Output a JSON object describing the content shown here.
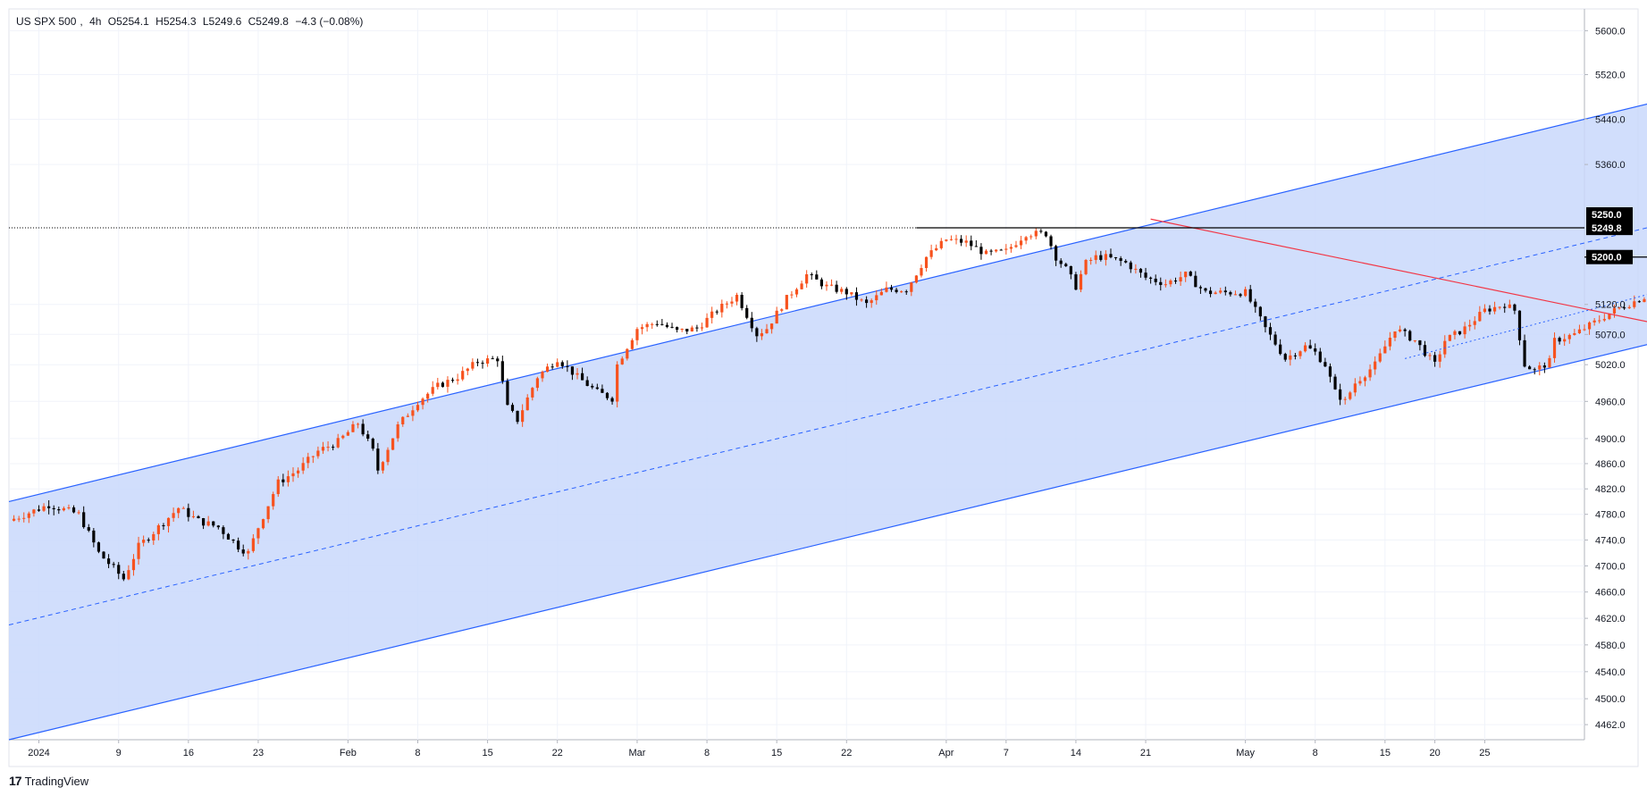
{
  "header": {
    "symbol": "US SPX 500",
    "interval": "4h",
    "open": "O5254.1",
    "high": "H5254.3",
    "low": "L5249.6",
    "close": "C5249.8",
    "change": "−4.3 (−0.08%)"
  },
  "branding": {
    "name": "TradingView",
    "logo_glyph": "17"
  },
  "colors": {
    "up": "#f7521e",
    "down": "#000000",
    "channel_line": "#2962ff",
    "channel_fill": "#c9d8fb",
    "resistance": "#f23645",
    "level": "#000000"
  },
  "price_tags": [
    {
      "label": "5250.0",
      "value": 5250.0
    },
    {
      "label": "5249.8",
      "value": 5249.8
    },
    {
      "label": "5200.0",
      "value": 5200.0
    }
  ],
  "chart_data": {
    "type": "candlestick",
    "title": "",
    "x_tick_labels": [
      "2024",
      "9",
      "16",
      "23",
      "Feb",
      "8",
      "15",
      "22",
      "Mar",
      "8",
      "15",
      "22",
      "Apr",
      "7",
      "14",
      "21",
      "May",
      "8",
      "15",
      "20",
      "25"
    ],
    "x_tick_days": [
      0,
      8,
      15,
      22,
      31,
      38,
      45,
      52,
      60,
      67,
      74,
      81,
      91,
      97,
      104,
      111,
      121,
      128,
      135,
      140,
      145
    ],
    "y_tick_labels": [
      "5600.0",
      "5520.0",
      "5440.0",
      "5360.0",
      "5120.0",
      "5070.0",
      "5020.0",
      "4960.0",
      "4900.0",
      "4860.0",
      "4820.0",
      "4780.0",
      "4740.0",
      "4700.0",
      "4660.0",
      "4620.0",
      "4580.0",
      "4540.0",
      "4500.0",
      "4462.0"
    ],
    "y_scale": "log",
    "ylim": [
      4440,
      5640
    ],
    "xlim_days": [
      -3,
      155
    ],
    "grid": true,
    "path": [
      [
        -3,
        4770
      ],
      [
        1,
        4795
      ],
      [
        4,
        4780
      ],
      [
        6,
        4720
      ],
      [
        8.5,
        4680
      ],
      [
        10,
        4730
      ],
      [
        12,
        4760
      ],
      [
        14,
        4790
      ],
      [
        16,
        4770
      ],
      [
        18,
        4760
      ],
      [
        20,
        4730
      ],
      [
        21,
        4720
      ],
      [
        22,
        4760
      ],
      [
        24,
        4830
      ],
      [
        26,
        4850
      ],
      [
        28,
        4880
      ],
      [
        30,
        4895
      ],
      [
        32,
        4925
      ],
      [
        33.5,
        4880
      ],
      [
        34,
        4850
      ],
      [
        36,
        4920
      ],
      [
        38,
        4960
      ],
      [
        40,
        4985
      ],
      [
        42,
        5000
      ],
      [
        44,
        5025
      ],
      [
        46,
        5030
      ],
      [
        47,
        4950
      ],
      [
        48,
        4930
      ],
      [
        50,
        5000
      ],
      [
        52,
        5030
      ],
      [
        54,
        5000
      ],
      [
        56,
        4975
      ],
      [
        57.5,
        4965
      ],
      [
        58,
        5020
      ],
      [
        60,
        5080
      ],
      [
        62,
        5090
      ],
      [
        64,
        5075
      ],
      [
        66,
        5080
      ],
      [
        68,
        5110
      ],
      [
        70,
        5135
      ],
      [
        72,
        5070
      ],
      [
        73,
        5080
      ],
      [
        75,
        5130
      ],
      [
        77,
        5170
      ],
      [
        79,
        5150
      ],
      [
        81,
        5140
      ],
      [
        83,
        5120
      ],
      [
        85,
        5145
      ],
      [
        87,
        5145
      ],
      [
        89,
        5200
      ],
      [
        91,
        5230
      ],
      [
        93,
        5225
      ],
      [
        95,
        5205
      ],
      [
        97,
        5210
      ],
      [
        99,
        5240
      ],
      [
        101,
        5240
      ],
      [
        102,
        5200
      ],
      [
        103,
        5180
      ],
      [
        104,
        5150
      ],
      [
        105,
        5190
      ],
      [
        106,
        5200
      ],
      [
        107,
        5200
      ],
      [
        109,
        5190
      ],
      [
        111,
        5165
      ],
      [
        113,
        5155
      ],
      [
        115,
        5170
      ],
      [
        117,
        5140
      ],
      [
        119,
        5140
      ],
      [
        121,
        5140
      ],
      [
        123,
        5080
      ],
      [
        125,
        5030
      ],
      [
        127,
        5050
      ],
      [
        128,
        5040
      ],
      [
        129,
        5020
      ],
      [
        130,
        4975
      ],
      [
        131,
        4960
      ],
      [
        132,
        4990
      ],
      [
        134,
        5020
      ],
      [
        136,
        5080
      ],
      [
        138,
        5060
      ],
      [
        140,
        5020
      ],
      [
        141,
        5060
      ],
      [
        143,
        5080
      ],
      [
        145,
        5110
      ],
      [
        147,
        5120
      ],
      [
        148,
        5110
      ],
      [
        149,
        5020
      ],
      [
        150,
        5010
      ],
      [
        151.5,
        5025
      ],
      [
        152,
        5060
      ],
      [
        154,
        5070
      ]
    ],
    "drawings": {
      "channel_upper": {
        "from": [
          -3,
          4800
        ],
        "to": [
          178,
          5540
        ]
      },
      "channel_lower": {
        "from": [
          -3,
          4440
        ],
        "to": [
          178,
          5120
        ]
      },
      "channel_mid": {
        "from": [
          -3,
          4610
        ],
        "to": [
          178,
          5320
        ]
      },
      "short_channel_mid": {
        "from": [
          137,
          5030
        ],
        "to": [
          180,
          5220
        ]
      },
      "resistance_line": {
        "from": [
          111.5,
          5265
        ],
        "to": [
          166,
          5075
        ]
      },
      "hline_5250": {
        "value": 5250.0,
        "from_day": 88
      },
      "hline_5200": {
        "value": 5200.0,
        "from_day": 170
      },
      "arrow_up_day": 174.5
    }
  }
}
